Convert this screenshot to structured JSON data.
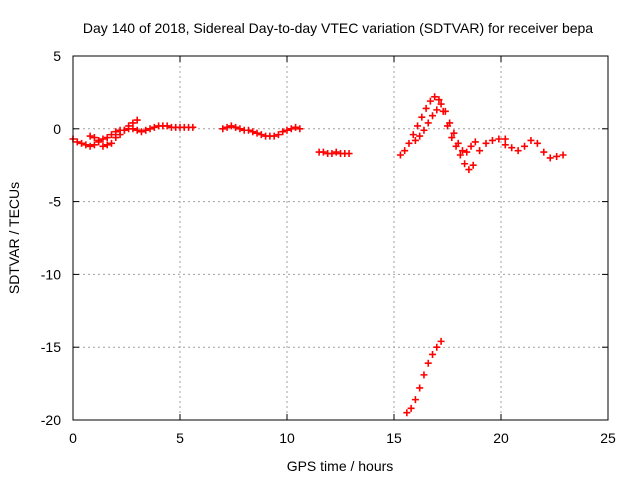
{
  "chart_data": {
    "type": "scatter",
    "title": "Day 140 of 2018, Sidereal Day-to-day VTEC variation (SDTVAR) for receiver bepa",
    "xlabel": "GPS time / hours",
    "ylabel": "SDTVAR / TECUs",
    "xlim": [
      0,
      25
    ],
    "ylim": [
      -20,
      5
    ],
    "xticks": [
      "0",
      "5",
      "10",
      "15",
      "20",
      "25"
    ],
    "yticks": [
      "5",
      "0",
      "-5",
      "-10",
      "-15",
      "-20"
    ],
    "grid": true,
    "marker": "plus",
    "color": "#ff0000",
    "series": [
      {
        "name": "segment-1",
        "x": [
          0.0,
          0.2,
          0.4,
          0.6,
          0.8,
          1.0,
          1.2,
          1.4,
          1.6,
          1.8,
          2.0,
          2.2,
          2.4,
          2.6,
          2.8,
          3.0
        ],
        "y": [
          -0.7,
          -0.9,
          -1.0,
          -1.1,
          -1.2,
          -1.1,
          -0.8,
          -1.2,
          -1.1,
          -1.0,
          -0.6,
          -0.4,
          -0.1,
          0.2,
          0.4,
          0.6
        ]
      },
      {
        "name": "segment-1-band",
        "x": [
          0.8,
          1.0,
          1.2,
          1.4,
          1.6,
          1.8,
          2.0,
          2.2,
          2.4,
          2.6,
          2.8,
          3.0,
          3.2,
          3.4,
          3.6,
          3.8,
          4.0,
          4.2,
          4.4,
          4.6,
          4.8,
          5.0,
          5.2,
          5.4,
          5.6
        ],
        "y": [
          -0.5,
          -0.6,
          -0.9,
          -0.7,
          -0.6,
          -0.4,
          -0.2,
          -0.1,
          -0.1,
          0.0,
          0.0,
          -0.1,
          -0.2,
          -0.1,
          0.0,
          0.1,
          0.2,
          0.2,
          0.2,
          0.1,
          0.1,
          0.1,
          0.1,
          0.1,
          0.1
        ]
      },
      {
        "name": "segment-2",
        "x": [
          7.0,
          7.2,
          7.4,
          7.6,
          7.8,
          8.0,
          8.2,
          8.4,
          8.6,
          8.8,
          9.0,
          9.2,
          9.4,
          9.6,
          9.8,
          10.0,
          10.2,
          10.4,
          10.6
        ],
        "y": [
          0.0,
          0.1,
          0.2,
          0.1,
          0.0,
          -0.1,
          -0.1,
          -0.2,
          -0.3,
          -0.4,
          -0.5,
          -0.5,
          -0.5,
          -0.4,
          -0.2,
          -0.1,
          0.0,
          0.1,
          0.0
        ]
      },
      {
        "name": "segment-3",
        "x": [
          11.5,
          11.7,
          11.9,
          12.1,
          12.3,
          12.5,
          12.7,
          12.9
        ],
        "y": [
          -1.6,
          -1.6,
          -1.7,
          -1.7,
          -1.6,
          -1.7,
          -1.7,
          -1.7
        ]
      },
      {
        "name": "segment-4",
        "x": [
          15.3,
          15.5,
          15.7,
          15.9,
          16.1,
          16.3,
          16.5,
          16.7,
          16.9,
          17.1,
          17.3,
          17.5,
          17.7,
          17.9,
          18.1,
          18.3,
          18.5,
          18.7,
          19.0,
          19.3,
          19.6,
          19.9,
          20.2
        ],
        "y": [
          -1.8,
          -1.5,
          -1.0,
          -0.4,
          0.2,
          0.8,
          1.4,
          1.9,
          2.2,
          2.0,
          1.2,
          0.2,
          -0.6,
          -1.2,
          -1.8,
          -2.4,
          -2.8,
          -2.5,
          -1.5,
          -1.0,
          -0.8,
          -0.7,
          -0.7
        ]
      },
      {
        "name": "segment-4-branch",
        "x": [
          16.0,
          16.2,
          16.4,
          16.6,
          16.8,
          17.0,
          17.2,
          17.4,
          17.6,
          17.8,
          18.0,
          18.2,
          18.4,
          18.6,
          18.8
        ],
        "y": [
          -0.8,
          -0.5,
          -0.1,
          0.4,
          0.9,
          1.3,
          1.7,
          1.2,
          0.4,
          -0.3,
          -1.0,
          -1.5,
          -1.6,
          -1.2,
          -0.9
        ]
      },
      {
        "name": "segment-5",
        "x": [
          20.2,
          20.5,
          20.8,
          21.1,
          21.4,
          21.7,
          22.0,
          22.3,
          22.6,
          22.9
        ],
        "y": [
          -1.1,
          -1.3,
          -1.5,
          -1.2,
          -0.8,
          -1.0,
          -1.6,
          -2.0,
          -1.9,
          -1.8
        ]
      },
      {
        "name": "segment-6",
        "x": [
          15.6,
          15.8,
          16.0,
          16.2,
          16.4,
          16.6,
          16.8,
          17.0,
          17.2
        ],
        "y": [
          -19.5,
          -19.2,
          -18.6,
          -17.8,
          -16.9,
          -16.1,
          -15.5,
          -15.0,
          -14.6
        ]
      }
    ]
  }
}
